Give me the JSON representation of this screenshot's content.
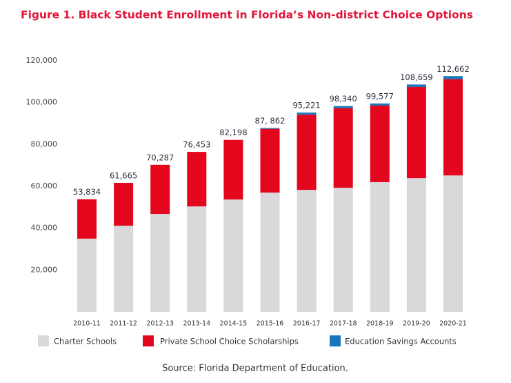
{
  "chart_data": {
    "type": "stacked-bar",
    "title": "Figure 1. Black Student Enrollment in Florida’s Non-district Choice Options",
    "categories": [
      "2010-11",
      "2011-12",
      "2012-13",
      "2013-14",
      "2014-15",
      "2015-16",
      "2016-17",
      "2017-18",
      "2018-19",
      "2019-20",
      "2020-21"
    ],
    "series": [
      {
        "name": "Charter Schools",
        "color": "#d9d9dc",
        "values": [
          35000,
          41200,
          46800,
          50400,
          53700,
          57000,
          58300,
          59300,
          62000,
          63900,
          65200
        ]
      },
      {
        "name": "Private School Choice Scholarships",
        "color": "#e3061c",
        "values": [
          18834,
          20465,
          23487,
          26053,
          28498,
          30462,
          35921,
          38040,
          36577,
          43559,
          45962
        ]
      },
      {
        "name": "Education Savings Accounts",
        "color": "#1a75bb",
        "values": [
          0,
          0,
          0,
          0,
          0,
          400,
          1000,
          1000,
          1000,
          1200,
          1500
        ]
      }
    ],
    "totals": [
      53834,
      61665,
      70287,
      76453,
      82198,
      87862,
      95221,
      98340,
      99577,
      108659,
      112662
    ],
    "total_labels": [
      "53,834",
      "61,665",
      "70,287",
      "76,453",
      "82,198",
      "87, 862",
      "95,221",
      "98,340",
      "99,577",
      "108,659",
      "112,662"
    ],
    "ylim": [
      0,
      120000
    ],
    "yticks": [
      {
        "value": 20000,
        "label": "20,000"
      },
      {
        "value": 40000,
        "label": "40,000"
      },
      {
        "value": 60000,
        "label": "60,000"
      },
      {
        "value": 80000,
        "label": "80,000"
      },
      {
        "value": 100000,
        "label": "100,000"
      },
      {
        "value": 120000,
        "label": "120,000"
      }
    ],
    "grid": false,
    "source": "Source: Florida Department of Education."
  }
}
